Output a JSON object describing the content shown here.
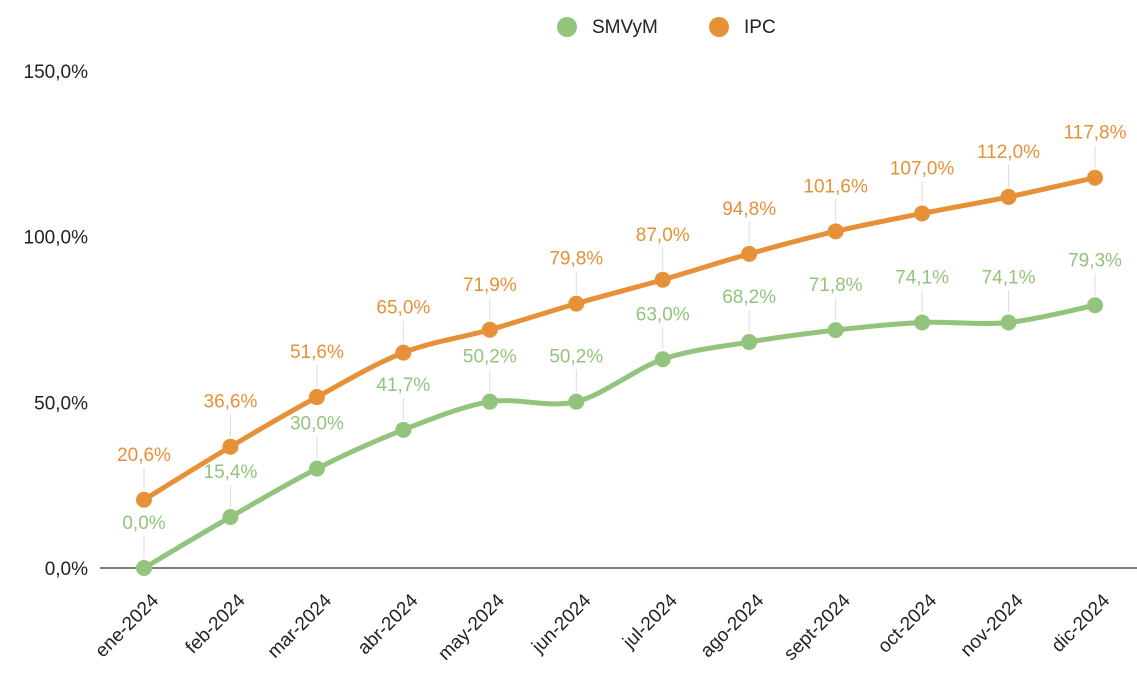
{
  "chart_data": {
    "type": "line",
    "categories": [
      "ene-2024",
      "feb-2024",
      "mar-2024",
      "abr-2024",
      "may-2024",
      "jun-2024",
      "jul-2024",
      "ago-2024",
      "sept-2024",
      "oct-2024",
      "nov-2024",
      "dic-2024"
    ],
    "series": [
      {
        "name": "SMVyM",
        "color": "#93c47d",
        "values": [
          0,
          15.4,
          30.0,
          41.7,
          50.2,
          50.2,
          63.0,
          68.2,
          71.8,
          74.1,
          74.1,
          79.3
        ],
        "value_labels": [
          "0,0%",
          "15,4%",
          "30,0%",
          "41,7%",
          "50,2%",
          "50,2%",
          "63,0%",
          "68,2%",
          "71,8%",
          "74,1%",
          "74,1%",
          "79,3%"
        ]
      },
      {
        "name": "IPC",
        "color": "#e69138",
        "values": [
          20.6,
          36.6,
          51.6,
          65.0,
          71.9,
          79.8,
          87.0,
          94.8,
          101.6,
          107.0,
          112.0,
          117.8
        ],
        "value_labels": [
          "20,6%",
          "36,6%",
          "51,6%",
          "65,0%",
          "71,9%",
          "79,8%",
          "87,0%",
          "94,8%",
          "101,6%",
          "107,0%",
          "112,0%",
          "117,8%"
        ]
      }
    ],
    "ylim": [
      0,
      150
    ],
    "yticks": [
      {
        "value": 0,
        "label": "0,0%"
      },
      {
        "value": 50,
        "label": "50,0%"
      },
      {
        "value": 100,
        "label": "100,0%"
      },
      {
        "value": 150,
        "label": "150,0%"
      }
    ],
    "legend": "top"
  }
}
